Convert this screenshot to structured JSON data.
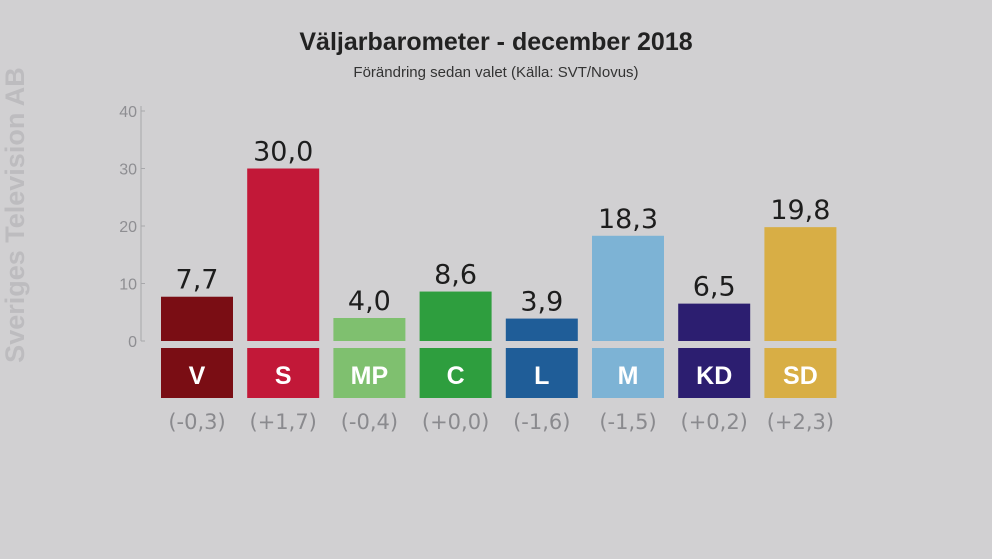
{
  "watermark": "Sveriges Television AB",
  "chart_data": {
    "type": "bar",
    "title": "Väljarbarometer - december 2018",
    "subtitle": "Förändring sedan valet  (Källa: SVT/Novus)",
    "ylim": [
      0,
      40
    ],
    "yticks": [
      "0",
      "10",
      "20",
      "30",
      "40"
    ],
    "categories": [
      "V",
      "S",
      "MP",
      "C",
      "L",
      "M",
      "KD",
      "SD"
    ],
    "values": [
      7.7,
      30.0,
      4.0,
      8.6,
      3.9,
      18.3,
      6.5,
      19.8
    ],
    "value_labels": [
      "7,7",
      "30,0",
      "4,0",
      "8,6",
      "3,9",
      "18,3",
      "6,5",
      "19,8"
    ],
    "changes": [
      "(-0,3)",
      "(+1,7)",
      "(-0,4)",
      "(+0,0)",
      "(-1,6)",
      "(-1,5)",
      "(+0,2)",
      "(+2,3)"
    ],
    "colors": [
      "#7a0d14",
      "#c21838",
      "#7fc06f",
      "#2e9e3e",
      "#1f5d98",
      "#7db3d5",
      "#2c1e70",
      "#d8ae45"
    ],
    "grid": false
  }
}
